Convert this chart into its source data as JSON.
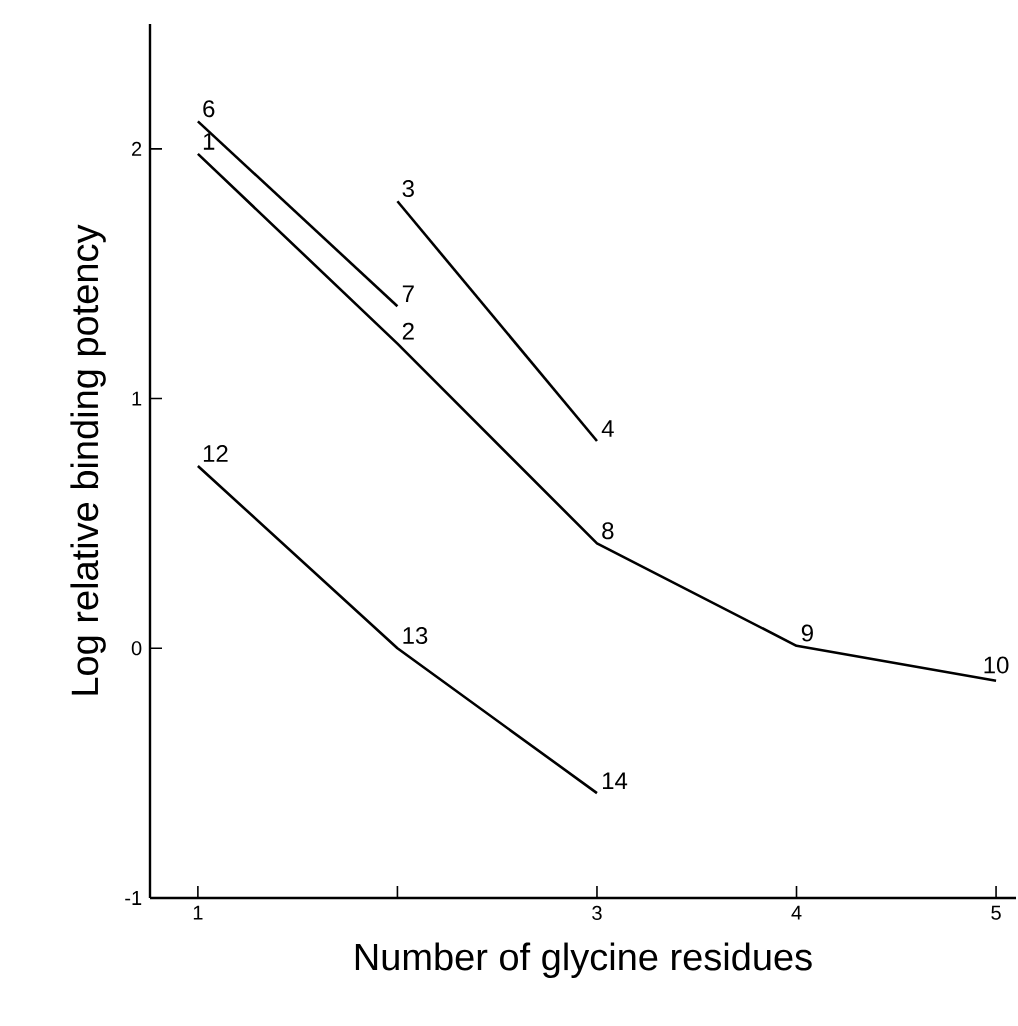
{
  "chart_data": {
    "type": "line",
    "xlabel": "Number of glycine residues",
    "ylabel": "Log relative binding potency",
    "xlim": [
      0.76,
      5.1
    ],
    "ylim": [
      -1,
      2.5
    ],
    "xticks": [
      1,
      {
        "value": 2,
        "label": null
      },
      3,
      4,
      5
    ],
    "yticks": [
      -1,
      0,
      1,
      2
    ],
    "grid": false,
    "marker": "none",
    "line_style": "solid",
    "series": [
      {
        "color": "#000000",
        "x": [
          1,
          2,
          3,
          4,
          5
        ],
        "values": [
          1.98,
          1.22,
          0.42,
          0.01,
          -0.13
        ]
      },
      {
        "color": "#000000",
        "x": [
          1,
          2
        ],
        "values": [
          2.11,
          1.37
        ]
      },
      {
        "color": "#000000",
        "x": [
          2,
          3
        ],
        "values": [
          1.79,
          0.83
        ]
      },
      {
        "color": "#000000",
        "x": [
          1,
          2,
          3
        ],
        "values": [
          0.73,
          0.0,
          -0.58
        ]
      }
    ],
    "annotations": [
      {
        "text": "1",
        "x": 1,
        "y": 1.98
      },
      {
        "text": "2",
        "x": 2,
        "y": 1.22
      },
      {
        "text": "8",
        "x": 3,
        "y": 0.42
      },
      {
        "text": "9",
        "x": 4,
        "y": 0.01
      },
      {
        "text": "10",
        "x": 5,
        "y": -0.13
      },
      {
        "text": "6",
        "x": 1,
        "y": 2.11
      },
      {
        "text": "7",
        "x": 2,
        "y": 1.37
      },
      {
        "text": "3",
        "x": 2,
        "y": 1.79
      },
      {
        "text": "4",
        "x": 3,
        "y": 0.83
      },
      {
        "text": "12",
        "x": 1,
        "y": 0.73
      },
      {
        "text": "13",
        "x": 2,
        "y": 0.0
      },
      {
        "text": "14",
        "x": 3,
        "y": -0.58
      }
    ]
  }
}
